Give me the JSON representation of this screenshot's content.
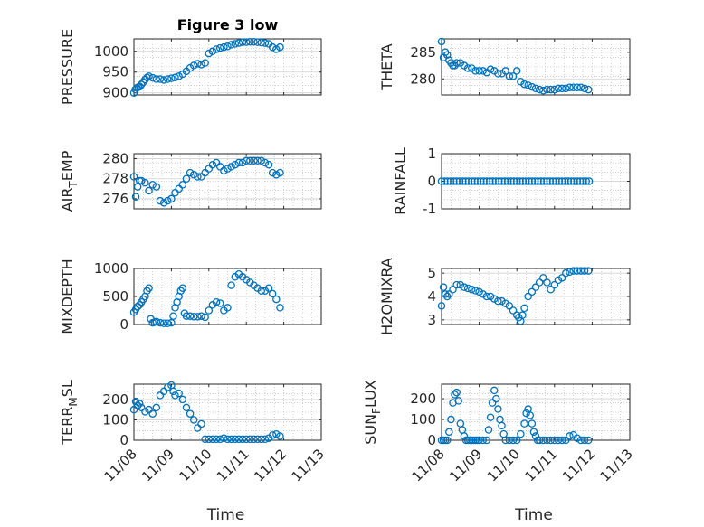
{
  "figure_title": "Figure 3 low",
  "colors": {
    "marker": "#0072bd",
    "axis": "#262626",
    "grid": "#b4b4b4",
    "background": "#ffffff"
  },
  "chart_data": [
    {
      "type": "scatter",
      "id": "pressure",
      "ylabel": "PRESSURE",
      "title": "Figure 3 low",
      "x_ticks": [
        "11/08",
        "11/09",
        "11/10",
        "11/11",
        "11/12",
        "11/13"
      ],
      "xlim": [
        0,
        5
      ],
      "ylim": [
        895,
        1030
      ],
      "yticks": [
        900,
        950,
        1000
      ],
      "grid": true,
      "x": [
        0,
        0.04,
        0.08,
        0.12,
        0.16,
        0.2,
        0.25,
        0.3,
        0.35,
        0.4,
        0.5,
        0.6,
        0.7,
        0.8,
        0.9,
        1.0,
        1.1,
        1.2,
        1.3,
        1.4,
        1.5,
        1.6,
        1.7,
        1.8,
        1.9,
        2.0,
        2.1,
        2.2,
        2.3,
        2.4,
        2.5,
        2.6,
        2.7,
        2.8,
        2.9,
        3.0,
        3.1,
        3.2,
        3.3,
        3.4,
        3.5,
        3.6,
        3.7,
        3.8,
        3.9
      ],
      "y": [
        900,
        908,
        912,
        914,
        915,
        920,
        926,
        932,
        937,
        940,
        936,
        933,
        933,
        931,
        933,
        935,
        937,
        940,
        945,
        952,
        960,
        966,
        970,
        968,
        972,
        995,
        1000,
        1005,
        1008,
        1010,
        1012,
        1016,
        1018,
        1020,
        1022,
        1022,
        1023,
        1023,
        1022,
        1021,
        1020,
        1018,
        1010,
        1005,
        1010
      ]
    },
    {
      "type": "scatter",
      "id": "theta",
      "ylabel": "THETA",
      "x_ticks": [
        "11/08",
        "11/09",
        "11/10",
        "11/11",
        "11/12",
        "11/13"
      ],
      "xlim": [
        0,
        5
      ],
      "ylim": [
        277,
        287.5
      ],
      "yticks": [
        280,
        285
      ],
      "grid": true,
      "x": [
        0,
        0.05,
        0.1,
        0.15,
        0.2,
        0.25,
        0.3,
        0.35,
        0.4,
        0.5,
        0.6,
        0.7,
        0.8,
        0.9,
        1.0,
        1.1,
        1.2,
        1.3,
        1.4,
        1.5,
        1.6,
        1.7,
        1.8,
        1.9,
        2.0,
        2.1,
        2.2,
        2.3,
        2.4,
        2.5,
        2.6,
        2.7,
        2.8,
        2.9,
        3.0,
        3.1,
        3.2,
        3.3,
        3.4,
        3.5,
        3.6,
        3.7,
        3.8,
        3.9
      ],
      "y": [
        287,
        284,
        285,
        284.5,
        283.5,
        283,
        282.5,
        282.5,
        283,
        283,
        282.5,
        282,
        282,
        281.5,
        281.5,
        281.5,
        281.2,
        281.8,
        281.5,
        281,
        281,
        281.5,
        280.5,
        280.5,
        281.5,
        279.5,
        279,
        278.8,
        278.5,
        278.2,
        278,
        277.8,
        278,
        278,
        278,
        278.2,
        278.2,
        278.2,
        278.4,
        278.4,
        278.4,
        278.4,
        278.2,
        278
      ]
    },
    {
      "type": "scatter",
      "id": "air_temp",
      "ylabel": "AIR_TEMP",
      "x_ticks": [
        "11/08",
        "11/09",
        "11/10",
        "11/11",
        "11/12",
        "11/13"
      ],
      "xlim": [
        0,
        5
      ],
      "ylim": [
        275,
        280.5
      ],
      "yticks": [
        276,
        278,
        280
      ],
      "grid": true,
      "x": [
        0,
        0.05,
        0.1,
        0.15,
        0.2,
        0.3,
        0.4,
        0.5,
        0.6,
        0.7,
        0.8,
        0.9,
        1.0,
        1.1,
        1.2,
        1.3,
        1.4,
        1.5,
        1.6,
        1.7,
        1.8,
        1.9,
        2.0,
        2.1,
        2.2,
        2.3,
        2.4,
        2.5,
        2.6,
        2.7,
        2.8,
        2.9,
        3.0,
        3.1,
        3.2,
        3.3,
        3.4,
        3.5,
        3.6,
        3.7,
        3.8,
        3.9
      ],
      "y": [
        278.2,
        276.2,
        277.2,
        277.8,
        277.8,
        277.6,
        276.8,
        277.4,
        277.2,
        275.8,
        275.6,
        275.8,
        276,
        276.6,
        277,
        277.4,
        278,
        278.6,
        278.4,
        278.2,
        278.2,
        278.6,
        279,
        279.4,
        279.6,
        279.2,
        278.8,
        279,
        279.2,
        279.4,
        279.6,
        279.6,
        279.8,
        279.8,
        279.8,
        279.8,
        279.8,
        279.6,
        279.4,
        278.6,
        278.4,
        278.6
      ]
    },
    {
      "type": "scatter",
      "id": "rainfall",
      "ylabel": "RAINFALL",
      "x_ticks": [
        "11/08",
        "11/09",
        "11/10",
        "11/11",
        "11/12",
        "11/13"
      ],
      "xlim": [
        0,
        5
      ],
      "ylim": [
        -1,
        1
      ],
      "yticks": [
        -1,
        0,
        1
      ],
      "grid": true,
      "x": [
        0,
        0.08,
        0.16,
        0.24,
        0.32,
        0.4,
        0.48,
        0.56,
        0.64,
        0.72,
        0.8,
        0.88,
        0.96,
        1.04,
        1.12,
        1.2,
        1.28,
        1.36,
        1.44,
        1.52,
        1.6,
        1.68,
        1.76,
        1.84,
        1.92,
        2.0,
        2.08,
        2.16,
        2.24,
        2.32,
        2.4,
        2.48,
        2.56,
        2.64,
        2.72,
        2.8,
        2.88,
        2.96,
        3.04,
        3.12,
        3.2,
        3.28,
        3.36,
        3.44,
        3.52,
        3.6,
        3.68,
        3.76,
        3.84,
        3.92
      ],
      "y": [
        0,
        0,
        0,
        0,
        0,
        0,
        0,
        0,
        0,
        0,
        0,
        0,
        0,
        0,
        0,
        0,
        0,
        0,
        0,
        0,
        0,
        0,
        0,
        0,
        0,
        0,
        0,
        0,
        0,
        0,
        0,
        0,
        0,
        0,
        0,
        0,
        0,
        0,
        0,
        0,
        0,
        0,
        0,
        0,
        0,
        0,
        0,
        0,
        0,
        0
      ]
    },
    {
      "type": "scatter",
      "id": "mixdepth",
      "ylabel": "MIXDEPTH",
      "x_ticks": [
        "11/08",
        "11/09",
        "11/10",
        "11/11",
        "11/12",
        "11/13"
      ],
      "xlim": [
        0,
        5
      ],
      "ylim": [
        0,
        1000
      ],
      "yticks": [
        0,
        500,
        1000
      ],
      "grid": true,
      "x": [
        0,
        0.05,
        0.1,
        0.15,
        0.2,
        0.25,
        0.3,
        0.35,
        0.4,
        0.45,
        0.5,
        0.55,
        0.6,
        0.7,
        0.8,
        0.9,
        1.0,
        1.05,
        1.1,
        1.15,
        1.2,
        1.25,
        1.3,
        1.35,
        1.4,
        1.5,
        1.6,
        1.7,
        1.8,
        1.9,
        2.0,
        2.1,
        2.2,
        2.3,
        2.4,
        2.5,
        2.6,
        2.7,
        2.8,
        2.9,
        3.0,
        3.1,
        3.2,
        3.3,
        3.4,
        3.5,
        3.6,
        3.7,
        3.8,
        3.9
      ],
      "y": [
        220,
        270,
        320,
        350,
        400,
        450,
        500,
        600,
        650,
        100,
        30,
        40,
        50,
        30,
        20,
        20,
        30,
        150,
        300,
        400,
        500,
        600,
        650,
        200,
        150,
        150,
        140,
        140,
        150,
        130,
        250,
        350,
        400,
        380,
        250,
        300,
        700,
        850,
        900,
        850,
        800,
        750,
        700,
        650,
        600,
        600,
        650,
        550,
        450,
        300
      ]
    },
    {
      "type": "scatter",
      "id": "h2omixra",
      "ylabel": "H2OMIXRA",
      "x_ticks": [
        "11/08",
        "11/09",
        "11/10",
        "11/11",
        "11/12",
        "11/13"
      ],
      "xlim": [
        0,
        5
      ],
      "ylim": [
        2.8,
        5.2
      ],
      "yticks": [
        3,
        4,
        5
      ],
      "grid": true,
      "x": [
        0,
        0.05,
        0.1,
        0.15,
        0.2,
        0.3,
        0.4,
        0.5,
        0.6,
        0.7,
        0.8,
        0.9,
        1.0,
        1.1,
        1.2,
        1.3,
        1.4,
        1.5,
        1.6,
        1.7,
        1.8,
        1.9,
        2.0,
        2.05,
        2.1,
        2.15,
        2.2,
        2.3,
        2.4,
        2.5,
        2.6,
        2.7,
        2.8,
        2.9,
        3.0,
        3.1,
        3.2,
        3.3,
        3.4,
        3.5,
        3.6,
        3.7,
        3.8,
        3.9
      ],
      "y": [
        3.6,
        4.4,
        4.1,
        4.0,
        4.1,
        4.3,
        4.5,
        4.5,
        4.4,
        4.35,
        4.3,
        4.25,
        4.2,
        4.1,
        4.0,
        4.0,
        3.9,
        3.8,
        3.8,
        3.7,
        3.6,
        3.4,
        3.2,
        3.1,
        2.95,
        3.2,
        3.5,
        4.0,
        4.2,
        4.4,
        4.6,
        4.8,
        4.6,
        4.3,
        4.5,
        4.7,
        4.8,
        5.0,
        5.05,
        5.1,
        5.1,
        5.1,
        5.1,
        5.1
      ]
    },
    {
      "type": "scatter",
      "id": "terr_msl",
      "ylabel": "TERR_MSL",
      "x_ticks": [
        "11/08",
        "11/09",
        "11/10",
        "11/11",
        "11/12",
        "11/13"
      ],
      "xlim": [
        0,
        5
      ],
      "ylim": [
        0,
        275
      ],
      "yticks": [
        0,
        100,
        200
      ],
      "grid": true,
      "x": [
        0,
        0.05,
        0.1,
        0.15,
        0.2,
        0.3,
        0.4,
        0.5,
        0.6,
        0.7,
        0.8,
        0.9,
        1.0,
        1.05,
        1.1,
        1.2,
        1.3,
        1.4,
        1.5,
        1.6,
        1.7,
        1.8,
        1.9,
        2.0,
        2.1,
        2.2,
        2.3,
        2.4,
        2.5,
        2.6,
        2.7,
        2.8,
        2.9,
        3.0,
        3.1,
        3.2,
        3.3,
        3.4,
        3.5,
        3.6,
        3.7,
        3.8,
        3.9
      ],
      "y": [
        150,
        190,
        170,
        180,
        160,
        140,
        150,
        130,
        160,
        220,
        240,
        260,
        270,
        240,
        220,
        230,
        200,
        160,
        130,
        100,
        60,
        80,
        5,
        5,
        5,
        5,
        5,
        10,
        5,
        5,
        5,
        5,
        5,
        5,
        5,
        5,
        5,
        5,
        5,
        10,
        25,
        30,
        20
      ]
    },
    {
      "type": "scatter",
      "id": "sun_flux",
      "ylabel": "SUN_FLUX",
      "x_ticks": [
        "11/08",
        "11/09",
        "11/10",
        "11/11",
        "11/12",
        "11/13"
      ],
      "xlim": [
        0,
        5
      ],
      "ylim": [
        0,
        270
      ],
      "yticks": [
        0,
        100,
        200
      ],
      "grid": true,
      "x": [
        0,
        0.05,
        0.1,
        0.15,
        0.2,
        0.25,
        0.3,
        0.35,
        0.4,
        0.45,
        0.5,
        0.55,
        0.6,
        0.65,
        0.7,
        0.75,
        0.8,
        0.85,
        0.9,
        0.95,
        1.0,
        1.1,
        1.2,
        1.25,
        1.3,
        1.35,
        1.4,
        1.45,
        1.5,
        1.55,
        1.6,
        1.65,
        1.7,
        1.8,
        1.9,
        2.0,
        2.1,
        2.2,
        2.25,
        2.3,
        2.35,
        2.4,
        2.45,
        2.5,
        2.55,
        2.6,
        2.7,
        2.8,
        2.9,
        3.0,
        3.1,
        3.2,
        3.3,
        3.4,
        3.5,
        3.6,
        3.7,
        3.8,
        3.9
      ],
      "y": [
        0,
        0,
        0,
        0,
        40,
        100,
        180,
        220,
        230,
        190,
        80,
        50,
        20,
        0,
        0,
        0,
        0,
        0,
        0,
        0,
        0,
        0,
        0,
        50,
        110,
        180,
        240,
        200,
        150,
        100,
        70,
        30,
        0,
        0,
        0,
        0,
        30,
        80,
        130,
        150,
        120,
        80,
        40,
        20,
        0,
        0,
        0,
        0,
        0,
        0,
        0,
        0,
        0,
        20,
        25,
        10,
        0,
        0,
        0
      ]
    }
  ]
}
